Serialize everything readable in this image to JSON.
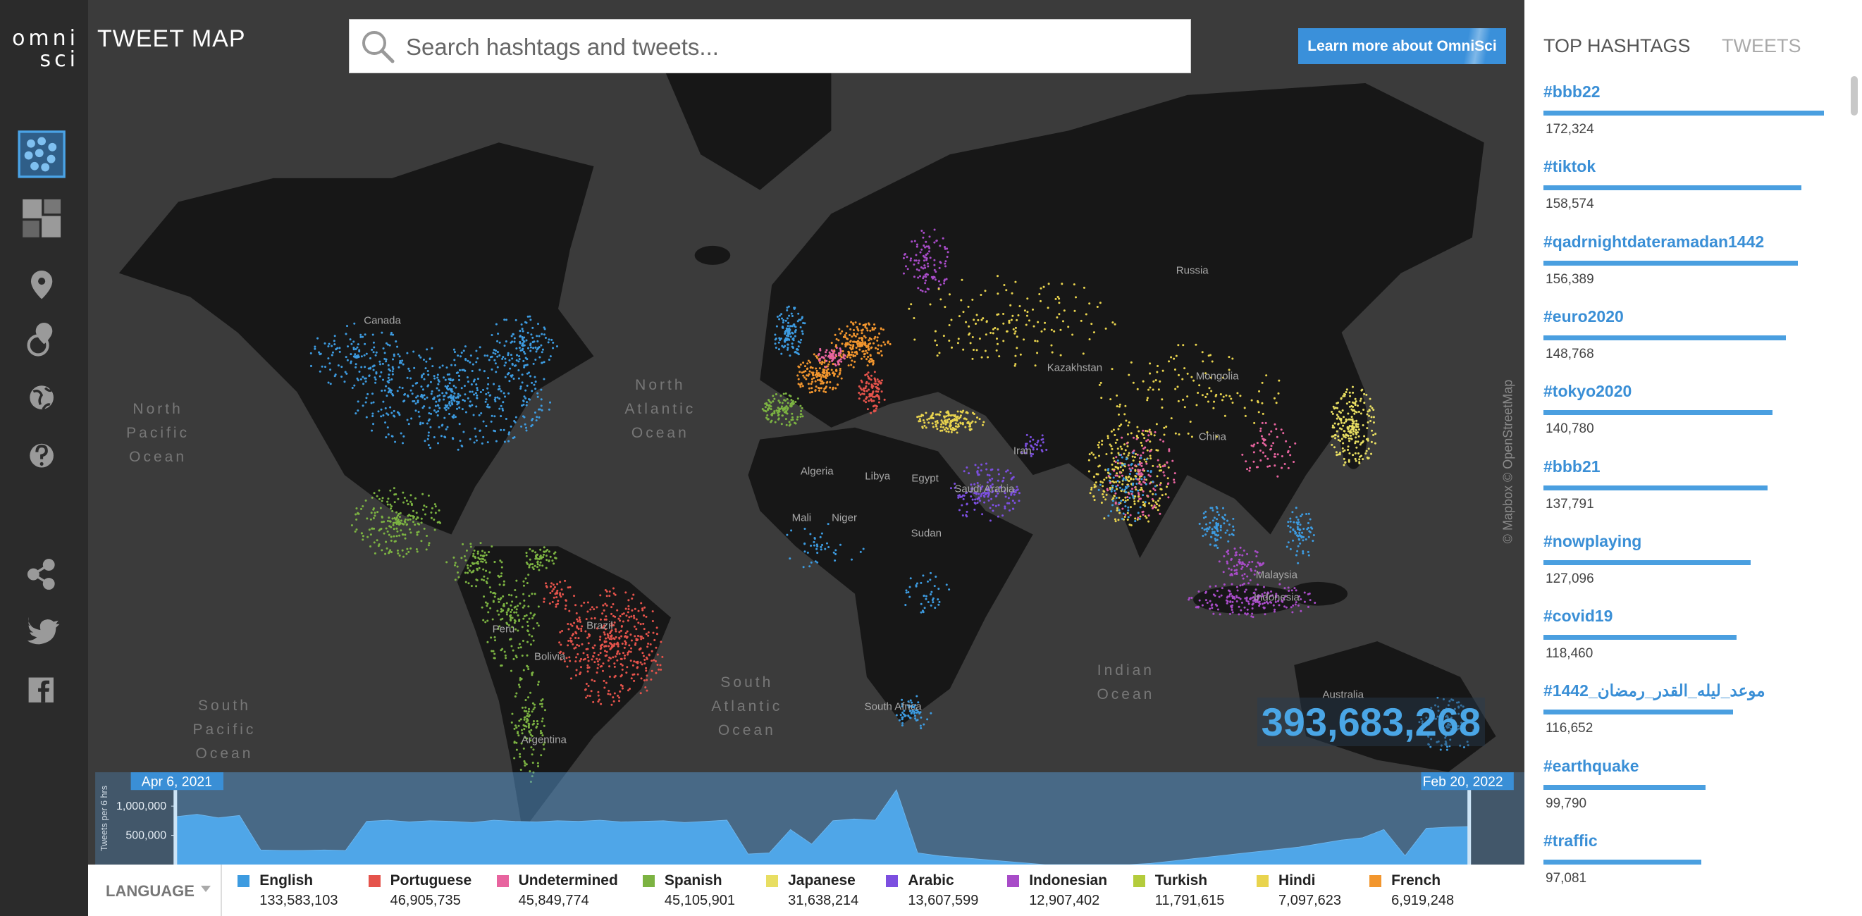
{
  "header": {
    "logo_top": "omni",
    "logo_bottom": "sci",
    "title": "TWEET MAP",
    "search_placeholder": "Search hashtags and tweets...",
    "button": "Learn more about OmniSci"
  },
  "map": {
    "labels": [
      "Canada",
      "Russia",
      "Kazakhstan",
      "Mongolia",
      "China",
      "Iran",
      "Algeria",
      "Libya",
      "Egypt",
      "Saudi Arabia",
      "Mali",
      "Niger",
      "Sudan",
      "Brazil",
      "Peru",
      "Bolivia",
      "Argentina",
      "Australia",
      "South Africa",
      "Malaysia",
      "Indonesia"
    ],
    "oceans": [
      "North Pacific Ocean",
      "North Atlantic Ocean",
      "South Atlantic Ocean",
      "Indian Ocean",
      "South Pacific Ocean"
    ],
    "attribution": "© Mapbox © OpenStreetMap",
    "counter": "393,683,268",
    "legend_title": "LANGUAGE",
    "languages": [
      {
        "name": "English",
        "color": "#3d9be0",
        "count": "133,583,103"
      },
      {
        "name": "Portuguese",
        "color": "#e5534b",
        "count": "46,905,735"
      },
      {
        "name": "Undetermined",
        "color": "#e8649f",
        "count": "45,849,774"
      },
      {
        "name": "Spanish",
        "color": "#7cb342",
        "count": "45,105,901"
      },
      {
        "name": "Japanese",
        "color": "#e8de62",
        "count": "31,638,214"
      },
      {
        "name": "Arabic",
        "color": "#7c4fe0",
        "count": "13,607,599"
      },
      {
        "name": "Indonesian",
        "color": "#a84cc8",
        "count": "12,907,402"
      },
      {
        "name": "Turkish",
        "color": "#b4cc3c",
        "count": "11,791,615"
      },
      {
        "name": "Hindi",
        "color": "#e9d44e",
        "count": "7,097,623"
      },
      {
        "name": "French",
        "color": "#f2962e",
        "count": "6,919,248"
      }
    ]
  },
  "sidebar": {
    "tabs": [
      "TOP HASHTAGS",
      "TWEETS"
    ]
  },
  "chart_data": [
    {
      "type": "area",
      "y_label": "Tweets per 6 hrs",
      "date_range": [
        "Apr 6, 2021",
        "Feb 20, 2022"
      ],
      "color": "#4fa6e8",
      "ylim": [
        0,
        1580000
      ],
      "yticks": [
        {
          "value": 500000,
          "label": "500,000"
        },
        {
          "value": 1000000,
          "label": "1,000,000"
        }
      ],
      "values": [
        820000,
        860000,
        800000,
        840000,
        250000,
        240000,
        240000,
        250000,
        240000,
        740000,
        760000,
        730000,
        750000,
        740000,
        720000,
        760000,
        740000,
        730000,
        750000,
        740000,
        760000,
        730000,
        740000,
        750000,
        720000,
        740000,
        760000,
        180000,
        200000,
        600000,
        350000,
        750000,
        780000,
        760000,
        1280000,
        200000,
        150000,
        120000,
        90000,
        60000,
        30000,
        0,
        0,
        0,
        0,
        0,
        20000,
        60000,
        100000,
        140000,
        180000,
        220000,
        260000,
        300000,
        360000,
        420000,
        460000,
        600000,
        150000,
        620000,
        640000,
        650000
      ]
    },
    {
      "type": "bar",
      "orientation": "horizontal",
      "color": "#4a9fe0",
      "categories": [
        "#bbb22",
        "#tiktok",
        "#qadrnightdateramadan1442",
        "#euro2020",
        "#tokyo2020",
        "#bbb21",
        "#nowplaying",
        "#covid19",
        "#موعد_ليله_القدر_رمضان_1442",
        "#earthquake",
        "#traffic"
      ],
      "values": [
        172324,
        158574,
        156389,
        148768,
        140780,
        137791,
        127096,
        118460,
        116652,
        99790,
        97081
      ],
      "value_labels": [
        "172,324",
        "158,574",
        "156,389",
        "148,768",
        "140,780",
        "137,791",
        "127,096",
        "118,460",
        "116,652",
        "99,790",
        "97,081"
      ]
    }
  ]
}
